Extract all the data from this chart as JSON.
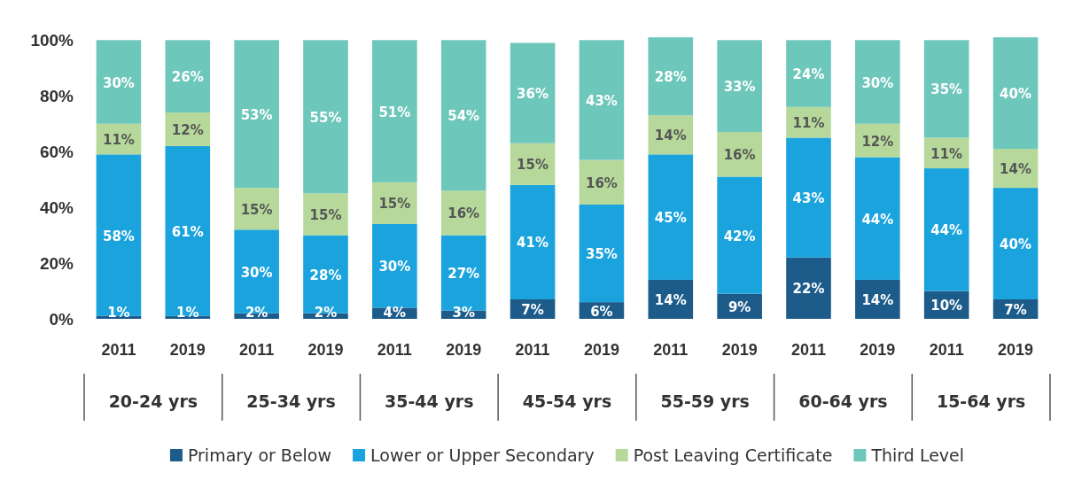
{
  "chart_data": {
    "type": "bar",
    "stacked": true,
    "categories": [
      "2011",
      "2019",
      "2011",
      "2019",
      "2011",
      "2019",
      "2011",
      "2019",
      "2011",
      "2019",
      "2011",
      "2019",
      "2011",
      "2019"
    ],
    "annotations": [
      "20-24 yrs",
      "25-34 yrs",
      "35-44 yrs",
      "45-54 yrs",
      "55-59 yrs",
      "60-64 yrs",
      "15-64 yrs"
    ],
    "ylim": [
      0,
      102
    ],
    "yticks": [
      {
        "value": 0,
        "label": "0%"
      },
      {
        "value": 20,
        "label": "20%"
      },
      {
        "value": 40,
        "label": "40%"
      },
      {
        "value": 60,
        "label": "60%"
      },
      {
        "value": 80,
        "label": "80%"
      },
      {
        "value": 100,
        "label": "100%"
      }
    ],
    "legend": "bottom",
    "series": [
      {
        "name": "Primary or Below",
        "color": "#1d5c8a",
        "values": [
          1,
          1,
          2,
          2,
          4,
          3,
          7,
          6,
          14,
          9,
          22,
          14,
          10,
          7
        ],
        "value_labels": [
          "1%",
          "1%",
          "2%",
          "2%",
          "4%",
          "3%",
          "7%",
          "6%",
          "14%",
          "9%",
          "22%",
          "14%",
          "10%",
          "7%"
        ]
      },
      {
        "name": "Lower or Upper Secondary",
        "color": "#1ba3dd",
        "values": [
          58,
          61,
          30,
          28,
          30,
          27,
          41,
          35,
          45,
          42,
          43,
          44,
          44,
          40
        ],
        "value_labels": [
          "58%",
          "61%",
          "30%",
          "28%",
          "30%",
          "27%",
          "41%",
          "35%",
          "45%",
          "42%",
          "43%",
          "44%",
          "44%",
          "40%"
        ]
      },
      {
        "name": "Post Leaving Certificate",
        "color": "#b6d99b",
        "values": [
          11,
          12,
          15,
          15,
          15,
          16,
          15,
          16,
          14,
          16,
          11,
          12,
          11,
          14
        ],
        "value_labels": [
          "11%",
          "12%",
          "15%",
          "15%",
          "15%",
          "16%",
          "15%",
          "16%",
          "14%",
          "16%",
          "11%",
          "12%",
          "11%",
          "14%"
        ]
      },
      {
        "name": "Third Level",
        "color": "#6dc7ba",
        "values": [
          30,
          26,
          53,
          55,
          51,
          54,
          36,
          43,
          28,
          33,
          24,
          30,
          35,
          40
        ],
        "value_labels": [
          "30%",
          "26%",
          "53%",
          "55%",
          "51%",
          "54%",
          "36%",
          "43%",
          "28%",
          "33%",
          "24%",
          "30%",
          "35%",
          "40%"
        ]
      }
    ]
  }
}
